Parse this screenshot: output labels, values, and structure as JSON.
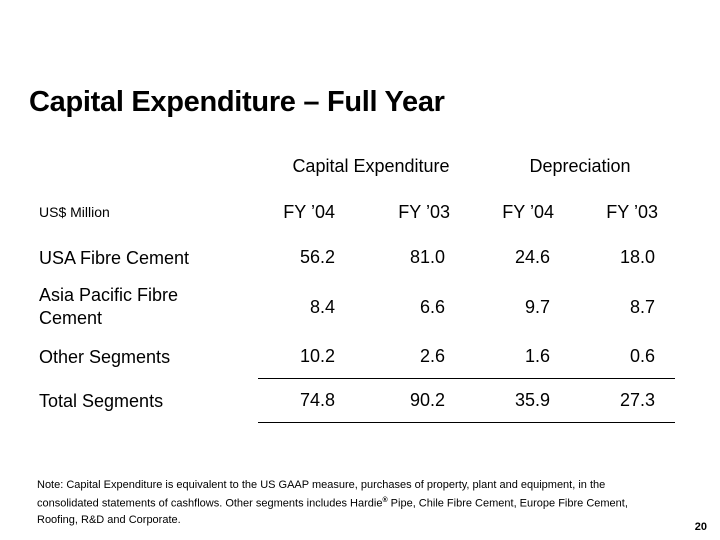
{
  "slide": {
    "title": "Capital Expenditure – Full Year",
    "page_number": "20"
  },
  "table": {
    "unit_label": "US$ Million",
    "groups": [
      "Capital Expenditure",
      "Depreciation"
    ],
    "columns": [
      "FY ’04",
      "FY ’03",
      "FY ’04",
      "FY ’03"
    ],
    "rows": [
      {
        "label": "USA Fibre Cement",
        "values": [
          "56.2",
          "81.0",
          "24.6",
          "18.0"
        ]
      },
      {
        "label": "Asia Pacific Fibre Cement",
        "values": [
          "8.4",
          "6.6",
          "9.7",
          "8.7"
        ]
      },
      {
        "label": "Other Segments",
        "values": [
          "10.2",
          "2.6",
          "1.6",
          "0.6"
        ]
      },
      {
        "label": "Total Segments",
        "values": [
          "74.8",
          "90.2",
          "35.9",
          "27.3"
        ]
      }
    ]
  },
  "footnote": {
    "part1": "Note:  Capital Expenditure is equivalent to the US GAAP measure,  purchases of property, plant and equipment, in the consolidated statements of cashflows.  Other segments includes Hardie",
    "registered_mark": "®",
    "part2": " Pipe, Chile Fibre Cement, Europe Fibre Cement, Roofing, R&D and Corporate."
  }
}
